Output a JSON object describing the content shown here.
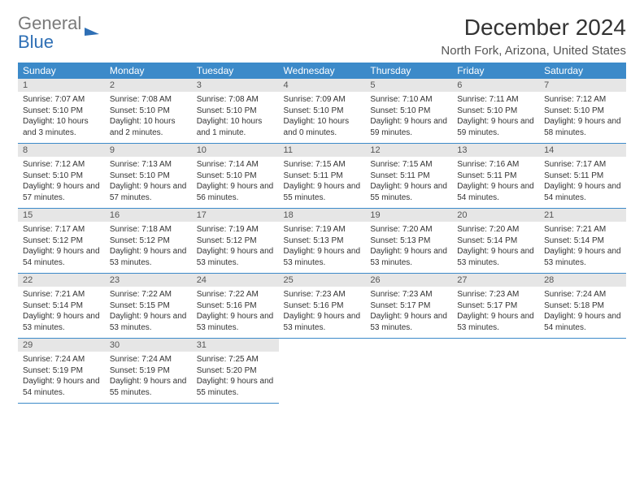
{
  "logo": {
    "part1": "General",
    "part2": "Blue"
  },
  "title": "December 2024",
  "location": "North Fork, Arizona, United States",
  "colors": {
    "header_bg": "#3c8ac9",
    "header_text": "#ffffff",
    "daynum_bg": "#e6e6e6",
    "row_border": "#3c8ac9",
    "logo_gray": "#7a7a7a",
    "logo_blue": "#2e6fb5"
  },
  "dayHeaders": [
    "Sunday",
    "Monday",
    "Tuesday",
    "Wednesday",
    "Thursday",
    "Friday",
    "Saturday"
  ],
  "weeks": [
    [
      {
        "d": "1",
        "sr": "7:07 AM",
        "ss": "5:10 PM",
        "dl": "10 hours and 3 minutes."
      },
      {
        "d": "2",
        "sr": "7:08 AM",
        "ss": "5:10 PM",
        "dl": "10 hours and 2 minutes."
      },
      {
        "d": "3",
        "sr": "7:08 AM",
        "ss": "5:10 PM",
        "dl": "10 hours and 1 minute."
      },
      {
        "d": "4",
        "sr": "7:09 AM",
        "ss": "5:10 PM",
        "dl": "10 hours and 0 minutes."
      },
      {
        "d": "5",
        "sr": "7:10 AM",
        "ss": "5:10 PM",
        "dl": "9 hours and 59 minutes."
      },
      {
        "d": "6",
        "sr": "7:11 AM",
        "ss": "5:10 PM",
        "dl": "9 hours and 59 minutes."
      },
      {
        "d": "7",
        "sr": "7:12 AM",
        "ss": "5:10 PM",
        "dl": "9 hours and 58 minutes."
      }
    ],
    [
      {
        "d": "8",
        "sr": "7:12 AM",
        "ss": "5:10 PM",
        "dl": "9 hours and 57 minutes."
      },
      {
        "d": "9",
        "sr": "7:13 AM",
        "ss": "5:10 PM",
        "dl": "9 hours and 57 minutes."
      },
      {
        "d": "10",
        "sr": "7:14 AM",
        "ss": "5:10 PM",
        "dl": "9 hours and 56 minutes."
      },
      {
        "d": "11",
        "sr": "7:15 AM",
        "ss": "5:11 PM",
        "dl": "9 hours and 55 minutes."
      },
      {
        "d": "12",
        "sr": "7:15 AM",
        "ss": "5:11 PM",
        "dl": "9 hours and 55 minutes."
      },
      {
        "d": "13",
        "sr": "7:16 AM",
        "ss": "5:11 PM",
        "dl": "9 hours and 54 minutes."
      },
      {
        "d": "14",
        "sr": "7:17 AM",
        "ss": "5:11 PM",
        "dl": "9 hours and 54 minutes."
      }
    ],
    [
      {
        "d": "15",
        "sr": "7:17 AM",
        "ss": "5:12 PM",
        "dl": "9 hours and 54 minutes."
      },
      {
        "d": "16",
        "sr": "7:18 AM",
        "ss": "5:12 PM",
        "dl": "9 hours and 53 minutes."
      },
      {
        "d": "17",
        "sr": "7:19 AM",
        "ss": "5:12 PM",
        "dl": "9 hours and 53 minutes."
      },
      {
        "d": "18",
        "sr": "7:19 AM",
        "ss": "5:13 PM",
        "dl": "9 hours and 53 minutes."
      },
      {
        "d": "19",
        "sr": "7:20 AM",
        "ss": "5:13 PM",
        "dl": "9 hours and 53 minutes."
      },
      {
        "d": "20",
        "sr": "7:20 AM",
        "ss": "5:14 PM",
        "dl": "9 hours and 53 minutes."
      },
      {
        "d": "21",
        "sr": "7:21 AM",
        "ss": "5:14 PM",
        "dl": "9 hours and 53 minutes."
      }
    ],
    [
      {
        "d": "22",
        "sr": "7:21 AM",
        "ss": "5:14 PM",
        "dl": "9 hours and 53 minutes."
      },
      {
        "d": "23",
        "sr": "7:22 AM",
        "ss": "5:15 PM",
        "dl": "9 hours and 53 minutes."
      },
      {
        "d": "24",
        "sr": "7:22 AM",
        "ss": "5:16 PM",
        "dl": "9 hours and 53 minutes."
      },
      {
        "d": "25",
        "sr": "7:23 AM",
        "ss": "5:16 PM",
        "dl": "9 hours and 53 minutes."
      },
      {
        "d": "26",
        "sr": "7:23 AM",
        "ss": "5:17 PM",
        "dl": "9 hours and 53 minutes."
      },
      {
        "d": "27",
        "sr": "7:23 AM",
        "ss": "5:17 PM",
        "dl": "9 hours and 53 minutes."
      },
      {
        "d": "28",
        "sr": "7:24 AM",
        "ss": "5:18 PM",
        "dl": "9 hours and 54 minutes."
      }
    ],
    [
      {
        "d": "29",
        "sr": "7:24 AM",
        "ss": "5:19 PM",
        "dl": "9 hours and 54 minutes."
      },
      {
        "d": "30",
        "sr": "7:24 AM",
        "ss": "5:19 PM",
        "dl": "9 hours and 55 minutes."
      },
      {
        "d": "31",
        "sr": "7:25 AM",
        "ss": "5:20 PM",
        "dl": "9 hours and 55 minutes."
      },
      null,
      null,
      null,
      null
    ]
  ],
  "labels": {
    "sunrise": "Sunrise: ",
    "sunset": "Sunset: ",
    "daylight": "Daylight: "
  }
}
